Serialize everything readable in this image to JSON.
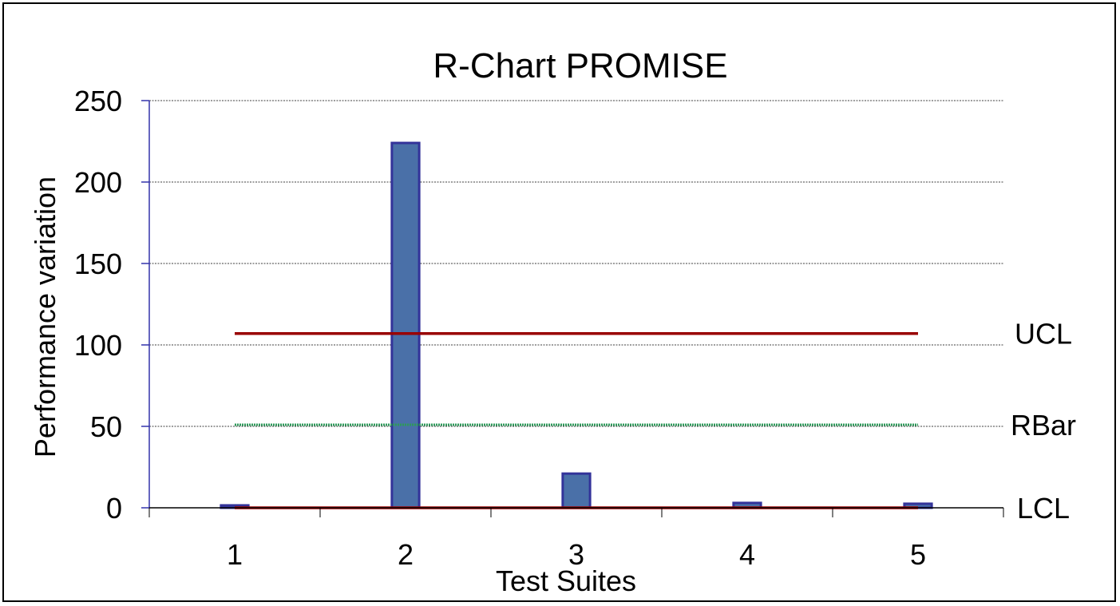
{
  "chart_data": {
    "type": "bar",
    "title": "R-Chart PROMISE",
    "xlabel": "Test Suites",
    "ylabel": "Performance variation",
    "categories": [
      "1",
      "2",
      "3",
      "4",
      "5"
    ],
    "ylim": [
      0,
      250
    ],
    "yticks": [
      0,
      50,
      100,
      150,
      200,
      250
    ],
    "grid": true,
    "series": [
      {
        "values": [
          1.5,
          224,
          21,
          3,
          2.5
        ],
        "color": "#4A70A8",
        "edge_color": "#33339A"
      }
    ],
    "control_lines": [
      {
        "name": "UCL",
        "value": 107,
        "color": "#990000",
        "style": "solid"
      },
      {
        "name": "RBar",
        "value": 51,
        "color": "#2E9A5A",
        "style": "dotted"
      },
      {
        "name": "LCL",
        "value": 0,
        "color": "#990000",
        "style": "solid"
      }
    ],
    "axis_color": "#3333AA"
  }
}
